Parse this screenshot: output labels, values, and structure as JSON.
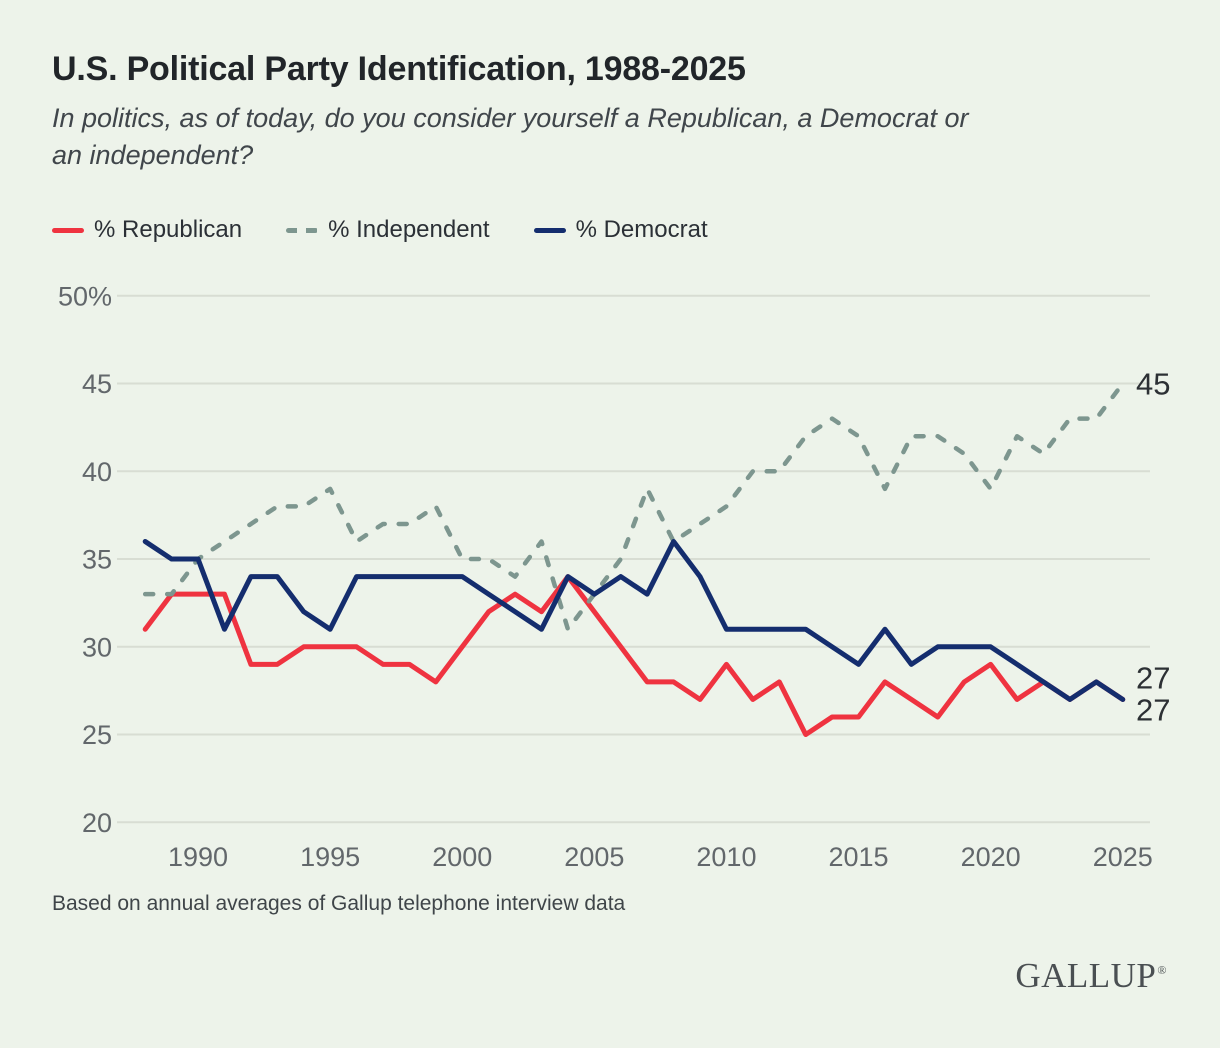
{
  "page": {
    "title": "U.S. Political Party Identification, 1988-2025",
    "subtitle_line1": "In politics, as of today, do you consider yourself a Republican, a Democrat or",
    "subtitle_line2": "an independent?",
    "footnote": "Based on annual averages of Gallup telephone interview data",
    "logo_text": "GALLUP",
    "logo_reg_mark": "®"
  },
  "colors": {
    "background": "#edf3ea",
    "republican": "#ef3340",
    "independent": "#7d968f",
    "democrat": "#142d6e",
    "gridline": "#d8ddd3",
    "tick_label": "#62676b",
    "end_label": "#2c3034"
  },
  "legend": [
    {
      "label": "% Republican",
      "color": "#ef3340",
      "style": "solid"
    },
    {
      "label": "% Independent",
      "color": "#7d968f",
      "style": "dashed"
    },
    {
      "label": "% Democrat",
      "color": "#142d6e",
      "style": "solid"
    }
  ],
  "chart_data": {
    "type": "line",
    "title": "U.S. Political Party Identification, 1988-2025",
    "xlabel": "",
    "ylabel": "",
    "ylim": [
      20,
      50
    ],
    "grid": true,
    "legend_position": "top",
    "x": [
      1988,
      1989,
      1990,
      1991,
      1992,
      1993,
      1994,
      1995,
      1996,
      1997,
      1998,
      1999,
      2000,
      2001,
      2002,
      2003,
      2004,
      2005,
      2006,
      2007,
      2008,
      2009,
      2010,
      2011,
      2012,
      2013,
      2014,
      2015,
      2016,
      2017,
      2018,
      2019,
      2020,
      2021,
      2022,
      2023,
      2024,
      2025
    ],
    "series": [
      {
        "name": "% Republican",
        "color": "#ef3340",
        "dash": false,
        "values": [
          31,
          33,
          33,
          33,
          29,
          29,
          30,
          30,
          30,
          29,
          29,
          28,
          30,
          32,
          33,
          32,
          34,
          32,
          30,
          28,
          28,
          27,
          29,
          27,
          28,
          25,
          26,
          26,
          28,
          27,
          26,
          28,
          29,
          27,
          28,
          27,
          28,
          27
        ]
      },
      {
        "name": "% Independent",
        "color": "#7d968f",
        "dash": true,
        "values": [
          33,
          33,
          35,
          36,
          37,
          38,
          38,
          39,
          36,
          37,
          37,
          38,
          35,
          35,
          34,
          36,
          31,
          33,
          35,
          39,
          36,
          37,
          38,
          40,
          40,
          42,
          43,
          42,
          39,
          42,
          42,
          41,
          39,
          42,
          41,
          43,
          43,
          45
        ]
      },
      {
        "name": "% Democrat",
        "color": "#142d6e",
        "dash": false,
        "values": [
          36,
          35,
          35,
          31,
          34,
          34,
          32,
          31,
          34,
          34,
          34,
          34,
          34,
          33,
          32,
          31,
          34,
          33,
          34,
          33,
          36,
          34,
          31,
          31,
          31,
          31,
          30,
          29,
          31,
          29,
          30,
          30,
          30,
          29,
          28,
          27,
          28,
          27
        ]
      }
    ],
    "ytick_values": [
      50,
      45,
      40,
      35,
      30,
      25,
      20
    ],
    "ytick_labels": [
      "50%",
      "45",
      "40",
      "35",
      "30",
      "25",
      "20"
    ],
    "xtick_values": [
      1990,
      1995,
      2000,
      2005,
      2010,
      2015,
      2020,
      2025
    ],
    "xtick_labels": [
      "1990",
      "1995",
      "2000",
      "2005",
      "2010",
      "2015",
      "2020",
      "2025"
    ],
    "end_labels": [
      "45",
      "27",
      "27"
    ]
  }
}
